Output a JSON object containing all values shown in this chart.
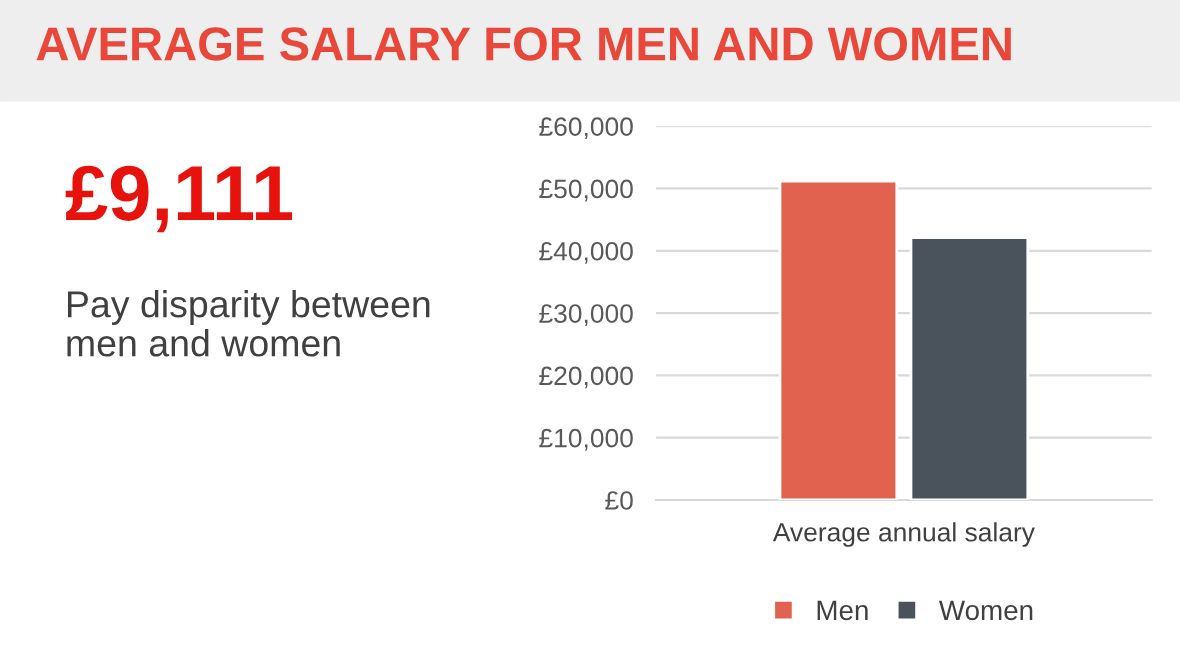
{
  "chart_data": {
    "type": "bar",
    "title": "AVERAGE SALARY FOR MEN AND WOMEN",
    "annotations": [
      "£9,111",
      "Pay disparity between\nmen and women"
    ],
    "categories": [
      "Average annual salary"
    ],
    "series": [
      {
        "name": "Men",
        "color": "#e0624f",
        "values": [
          51200
        ]
      },
      {
        "name": "Women",
        "color": "#4a535c",
        "values": [
          42100
        ]
      }
    ],
    "ylim": [
      0,
      60000
    ],
    "yticks": [
      {
        "value": 0,
        "label": "£0"
      },
      {
        "value": 10000,
        "label": "£10,000"
      },
      {
        "value": 20000,
        "label": "£20,000"
      },
      {
        "value": 30000,
        "label": "£30,000"
      },
      {
        "value": 40000,
        "label": "£40,000"
      },
      {
        "value": 50000,
        "label": "£50,000"
      },
      {
        "value": 60000,
        "label": "£60,000"
      }
    ],
    "grid": "y",
    "legend": "bottom"
  }
}
